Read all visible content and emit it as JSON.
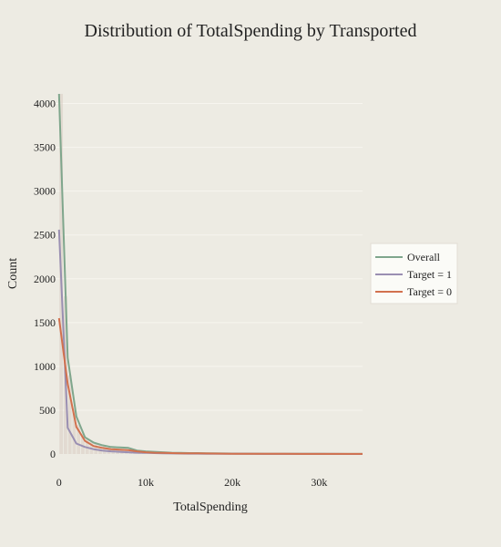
{
  "chart_data": {
    "type": "line",
    "title": "Distribution of TotalSpending by Transported",
    "xlabel": "TotalSpending",
    "ylabel": "Count",
    "xlim": [
      -500,
      35000
    ],
    "ylim": [
      0,
      4120
    ],
    "x_ticks": [
      0,
      10000,
      20000,
      30000
    ],
    "x_tick_labels": [
      "0",
      "10k",
      "20k",
      "30k"
    ],
    "y_ticks": [
      0,
      500,
      1000,
      1500,
      2000,
      2500,
      3000,
      3500,
      4000
    ],
    "y_tick_labels": [
      "0",
      "500",
      "1000",
      "1500",
      "2000",
      "2500",
      "3000",
      "3500",
      "4000"
    ],
    "grid": true,
    "legend_position": "right",
    "x": [
      0,
      1000,
      2000,
      3000,
      4000,
      5000,
      6000,
      7000,
      8000,
      9000,
      10000,
      11000,
      12000,
      13000,
      14000,
      15000,
      16000,
      17000,
      18000,
      19000,
      20000,
      22000,
      24000,
      26000,
      28000,
      30000,
      32000,
      34000,
      35000
    ],
    "series": [
      {
        "name": "Overall",
        "color": "#7fa68c",
        "values": [
          4110,
          1100,
          430,
          190,
          130,
          100,
          80,
          75,
          70,
          40,
          30,
          25,
          20,
          15,
          12,
          10,
          10,
          8,
          8,
          6,
          5,
          4,
          3,
          3,
          2,
          2,
          1,
          1,
          1
        ]
      },
      {
        "name": "Target = 1",
        "color": "#9a8fb2",
        "values": [
          2560,
          300,
          120,
          80,
          55,
          40,
          30,
          25,
          20,
          15,
          12,
          10,
          8,
          6,
          5,
          4,
          4,
          3,
          3,
          2,
          2,
          2,
          1,
          1,
          1,
          1,
          1,
          0,
          0
        ]
      },
      {
        "name": "Target = 0",
        "color": "#d2714e",
        "values": [
          1550,
          800,
          310,
          150,
          90,
          70,
          55,
          50,
          45,
          30,
          20,
          15,
          12,
          10,
          8,
          7,
          7,
          6,
          5,
          4,
          3,
          3,
          2,
          2,
          1,
          1,
          1,
          1,
          1
        ]
      }
    ],
    "histogram": {
      "color": "#d8ccc3",
      "bin_width": 500,
      "bin_starts": [
        0,
        500,
        1000,
        1500,
        2000,
        2500,
        3000,
        3500,
        4000,
        4500,
        5000,
        5500,
        6000,
        6500,
        7000,
        7500,
        8000,
        8500,
        9000,
        9500
      ],
      "counts": [
        4110,
        1800,
        900,
        520,
        330,
        230,
        170,
        140,
        120,
        100,
        85,
        75,
        65,
        58,
        52,
        45,
        40,
        35,
        30,
        25
      ]
    }
  }
}
